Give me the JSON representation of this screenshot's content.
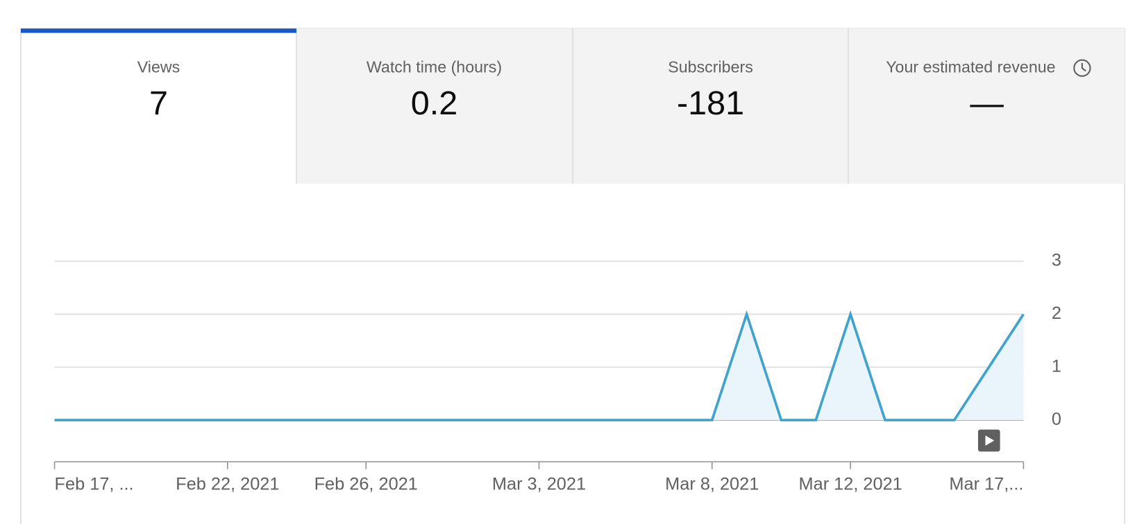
{
  "tabs": [
    {
      "label": "Views",
      "value": 7
    },
    {
      "label": "Watch time (hours)",
      "value": 0.2
    },
    {
      "label": "Subscribers",
      "value": -181
    },
    {
      "label": "Your estimated revenue",
      "value": "—"
    }
  ],
  "chart_data": {
    "type": "line",
    "color": "#41a3cc",
    "fill": "#eaf4fb",
    "grid": true,
    "x": [
      "2021-02-17",
      "2021-02-18",
      "2021-02-19",
      "2021-02-20",
      "2021-02-21",
      "2021-02-22",
      "2021-02-23",
      "2021-02-24",
      "2021-02-25",
      "2021-02-26",
      "2021-02-27",
      "2021-02-28",
      "2021-03-01",
      "2021-03-02",
      "2021-03-03",
      "2021-03-04",
      "2021-03-05",
      "2021-03-06",
      "2021-03-07",
      "2021-03-08",
      "2021-03-09",
      "2021-03-10",
      "2021-03-11",
      "2021-03-12",
      "2021-03-13",
      "2021-03-14",
      "2021-03-15",
      "2021-03-16",
      "2021-03-17"
    ],
    "values": [
      0,
      0,
      0,
      0,
      0,
      0,
      0,
      0,
      0,
      0,
      0,
      0,
      0,
      0,
      0,
      0,
      0,
      0,
      0,
      0,
      2,
      0,
      0,
      2,
      0,
      0,
      0,
      1,
      2
    ],
    "xlim": [
      "2021-02-17",
      "2021-03-17"
    ],
    "xticks": [
      {
        "value": "2021-02-17",
        "label": "Feb 17, ..."
      },
      {
        "value": "2021-02-22",
        "label": "Feb 22, 2021"
      },
      {
        "value": "2021-02-26",
        "label": "Feb 26, 2021"
      },
      {
        "value": "2021-03-03",
        "label": "Mar 3, 2021"
      },
      {
        "value": "2021-03-08",
        "label": "Mar 8, 2021"
      },
      {
        "value": "2021-03-12",
        "label": "Mar 12, 2021"
      },
      {
        "value": "2021-03-17",
        "label": "Mar 17,..."
      }
    ],
    "ylim": [
      0,
      3
    ],
    "yticks": [
      0,
      1,
      2,
      3
    ]
  }
}
